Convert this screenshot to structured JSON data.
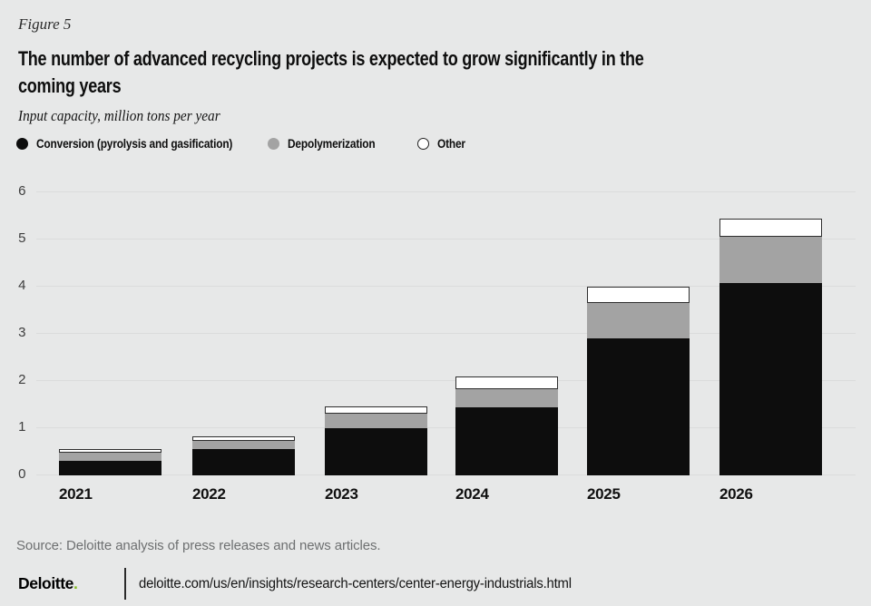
{
  "figure_label": "Figure 5",
  "title": "The number of advanced recycling projects is expected to grow significantly in the\ncoming years",
  "subtitle": "Input capacity, million tons per year",
  "legend": [
    {
      "label": "Conversion (pyrolysis and gasification)",
      "color": "#0d0d0d"
    },
    {
      "label": "Depolymerization",
      "color": "#a3a3a3"
    },
    {
      "label": "Other",
      "color": "#ffffff",
      "border_color": "#222222"
    }
  ],
  "chart_data": {
    "type": "bar",
    "stacked": true,
    "title": "The number of advanced recycling projects is expected to grow significantly in the coming years",
    "ylabel": "Input capacity, million tons per year",
    "xlabel": "",
    "categories": [
      "2021",
      "2022",
      "2023",
      "2024",
      "2025",
      "2026"
    ],
    "series": [
      {
        "name": "Conversion (pyrolysis and gasification)",
        "color": "#0d0d0d",
        "values": [
          0.3,
          0.55,
          1.0,
          1.45,
          2.9,
          4.07
        ]
      },
      {
        "name": "Depolymerization",
        "color": "#a3a3a3",
        "values": [
          0.18,
          0.19,
          0.3,
          0.38,
          0.76,
          0.98
        ]
      },
      {
        "name": "Other",
        "color": "#ffffff",
        "border_color": "#2e2e2e",
        "values": [
          0.07,
          0.08,
          0.16,
          0.27,
          0.34,
          0.4
        ]
      }
    ],
    "totals": [
      0.55,
      0.82,
      1.46,
      2.1,
      4.0,
      5.45
    ],
    "ylim": [
      0,
      6
    ],
    "yticks": [
      0,
      1,
      2,
      3,
      4,
      5,
      6
    ],
    "grid": true,
    "legend_position": "top"
  },
  "footer": {
    "source": "Source: Deloitte analysis of press releases and news articles.",
    "brand": "Deloitte",
    "brand_period": ".",
    "url": "deloitte.com/us/en/insights/research-centers/center-energy-industrials.html"
  },
  "colors": {
    "background": "#e7e8e8",
    "gridline": "#dbdcdc",
    "accent_green": "#86bc25",
    "conversion": "#0d0d0d",
    "depolymerization": "#a3a3a3",
    "other_fill": "#ffffff",
    "other_border": "#2e2e2e"
  }
}
